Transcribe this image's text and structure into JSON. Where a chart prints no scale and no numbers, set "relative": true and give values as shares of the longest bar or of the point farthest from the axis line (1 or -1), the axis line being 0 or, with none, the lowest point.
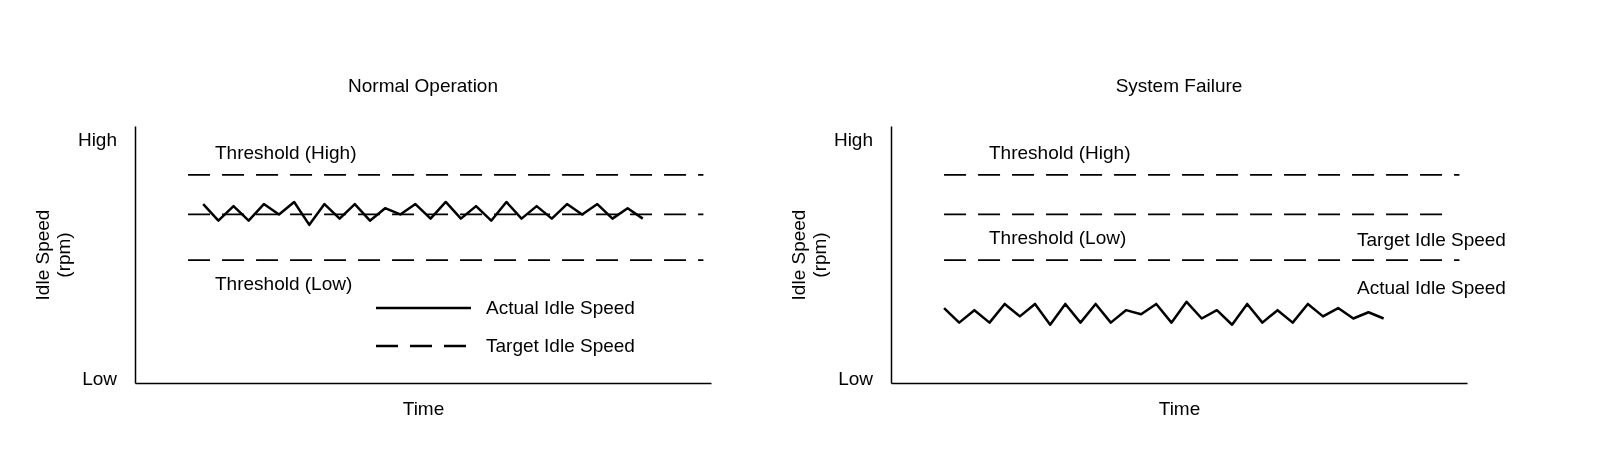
{
  "chart_data": [
    {
      "type": "line",
      "title": "Normal Operation",
      "xlabel": "Time",
      "ylabel": "Idle Speed (rpm)",
      "relative": true,
      "annotations": [
        "High",
        "Low",
        {
          "text": "Threshold (High)",
          "y": 1
        },
        {
          "text": "Threshold (Low)",
          "y": 0.59
        }
      ],
      "categories": [
        null,
        null,
        null,
        null,
        null,
        null,
        null,
        null,
        null,
        null,
        null,
        null,
        null,
        null,
        null,
        null,
        null,
        null,
        null,
        null,
        null,
        null,
        null,
        null,
        null,
        null,
        null,
        null,
        null,
        null,
        null,
        null,
        null,
        null,
        null,
        null,
        null,
        null
      ],
      "legend": "bottom right",
      "series": [
        {
          "name": "Actual Idle Speed",
          "color": "#000000",
          "line_style": "solid",
          "values": [
            null,
            null,
            null,
            null,
            0.86,
            0.78,
            0.85,
            0.78,
            0.86,
            0.81,
            0.87,
            0.76,
            0.86,
            0.79,
            0.86,
            0.78,
            0.84,
            0.81,
            0.86,
            0.79,
            0.87,
            0.79,
            0.85,
            0.78,
            0.87,
            0.79,
            0.85,
            0.79,
            0.86,
            0.81,
            0.86,
            0.79,
            0.84,
            0.79,
            null,
            null,
            null,
            null
          ]
        },
        {
          "name": "Target Idle Speed",
          "color": "#000000",
          "line_style": "dashed",
          "values": [
            null,
            null,
            null,
            0.81,
            0.81,
            0.81,
            0.81,
            0.81,
            0.81,
            0.81,
            0.81,
            0.81,
            0.81,
            0.81,
            0.81,
            0.81,
            0.81,
            0.81,
            0.81,
            0.81,
            0.81,
            0.81,
            0.81,
            0.81,
            0.81,
            0.81,
            0.81,
            0.81,
            0.81,
            0.81,
            0.81,
            0.81,
            0.81,
            0.81,
            0.81,
            0.81,
            0.81,
            0.81
          ]
        },
        {
          "color": "#000000",
          "line_style": "dashed",
          "values": [
            null,
            null,
            null,
            1,
            1,
            1,
            1,
            1,
            1,
            1,
            1,
            1,
            1,
            1,
            1,
            1,
            1,
            1,
            1,
            1,
            1,
            1,
            1,
            1,
            1,
            1,
            1,
            1,
            1,
            1,
            1,
            1,
            1,
            1,
            1,
            1,
            1,
            1
          ]
        },
        {
          "color": "#000000",
          "line_style": "dashed",
          "values": [
            null,
            null,
            null,
            0.59,
            0.59,
            0.59,
            0.59,
            0.59,
            0.59,
            0.59,
            0.59,
            0.59,
            0.59,
            0.59,
            0.59,
            0.59,
            0.59,
            0.59,
            0.59,
            0.59,
            0.59,
            0.59,
            0.59,
            0.59,
            0.59,
            0.59,
            0.59,
            0.59,
            0.59,
            0.59,
            0.59,
            0.59,
            0.59,
            0.59,
            0.59,
            0.59,
            0.59,
            0.59
          ]
        }
      ]
    },
    {
      "type": "line",
      "title": "System Failure",
      "xlabel": "Time",
      "ylabel": "Idle Speed (rpm)",
      "relative": true,
      "annotations": [
        "High",
        "Low",
        {
          "text": "Threshold (High)",
          "y": 1
        },
        {
          "text": "Threshold (Low)",
          "y": 0.59
        }
      ],
      "categories": [
        null,
        null,
        null,
        null,
        null,
        null,
        null,
        null,
        null,
        null,
        null,
        null,
        null,
        null,
        null,
        null,
        null,
        null,
        null,
        null,
        null,
        null,
        null,
        null,
        null,
        null,
        null,
        null,
        null,
        null,
        null,
        null,
        null,
        null,
        null,
        null,
        null,
        null
      ],
      "series": [
        {
          "name": "Actual Idle Speed",
          "color": "#000000",
          "line_style": "solid",
          "values": [
            null,
            null,
            null,
            0.36,
            0.29,
            0.35,
            0.29,
            0.38,
            0.32,
            0.38,
            0.28,
            0.38,
            0.29,
            0.38,
            0.29,
            0.35,
            0.33,
            0.38,
            0.29,
            0.39,
            0.31,
            0.35,
            0.28,
            0.38,
            0.29,
            0.35,
            0.29,
            0.38,
            0.32,
            0.36,
            0.31,
            0.34,
            0.31,
            null,
            null,
            null,
            null,
            null
          ]
        },
        {
          "name": "Target Idle Speed",
          "color": "#000000",
          "line_style": "dashed",
          "values": [
            null,
            null,
            null,
            0.81,
            0.81,
            0.81,
            0.81,
            0.81,
            0.81,
            0.81,
            0.81,
            0.81,
            0.81,
            0.81,
            0.81,
            0.81,
            0.81,
            0.81,
            0.81,
            0.81,
            0.81,
            0.81,
            0.81,
            0.81,
            0.81,
            0.81,
            0.81,
            0.81,
            0.81,
            0.81,
            0.81,
            0.81,
            0.81,
            0.81,
            0.81,
            0.81,
            0.81,
            null
          ]
        },
        {
          "color": "#000000",
          "line_style": "dashed",
          "values": [
            null,
            null,
            null,
            1,
            1,
            1,
            1,
            1,
            1,
            1,
            1,
            1,
            1,
            1,
            1,
            1,
            1,
            1,
            1,
            1,
            1,
            1,
            1,
            1,
            1,
            1,
            1,
            1,
            1,
            1,
            1,
            1,
            1,
            1,
            1,
            1,
            1,
            1
          ]
        },
        {
          "color": "#000000",
          "line_style": "dashed",
          "values": [
            null,
            null,
            null,
            0.59,
            0.59,
            0.59,
            0.59,
            0.59,
            0.59,
            0.59,
            0.59,
            0.59,
            0.59,
            0.59,
            0.59,
            0.59,
            0.59,
            0.59,
            0.59,
            0.59,
            0.59,
            0.59,
            0.59,
            0.59,
            0.59,
            0.59,
            0.59,
            0.59,
            0.59,
            0.59,
            0.59,
            0.59,
            0.59,
            0.59,
            0.59,
            0.59,
            0.59,
            0.59
          ]
        }
      ]
    }
  ]
}
